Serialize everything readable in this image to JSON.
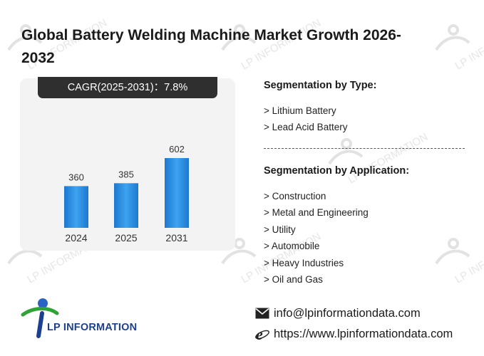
{
  "title": "Global Battery Welding Machine Market Growth 2026-2032",
  "cagr_label": "CAGR(2025-2031)：7.8%",
  "chart_data": {
    "type": "bar",
    "categories": [
      "2024",
      "2025",
      "2031"
    ],
    "values": [
      360,
      385,
      602
    ],
    "title": "",
    "xlabel": "",
    "ylabel": "",
    "ylim": [
      0,
      650
    ],
    "grid": false,
    "bar_color": "#2e8fe0"
  },
  "segmentation": {
    "type_heading": "Segmentation by Type:",
    "types": [
      "> Lithium Battery",
      "> Lead Acid Battery"
    ],
    "application_heading": "Segmentation by Application:",
    "applications": [
      "> Construction",
      "> Metal and Engineering",
      "> Utility",
      "> Automobile",
      "> Heavy Industries",
      "> Oil and Gas"
    ]
  },
  "brand": {
    "name": "LP INFORMATION",
    "watermark_text": "LP INFORMATION"
  },
  "contact": {
    "email": "info@lpinformationdata.com",
    "website": "https://www.lpinformationdata.com"
  },
  "icons": {
    "email": "envelope-icon",
    "website": "internet-explorer-icon"
  }
}
